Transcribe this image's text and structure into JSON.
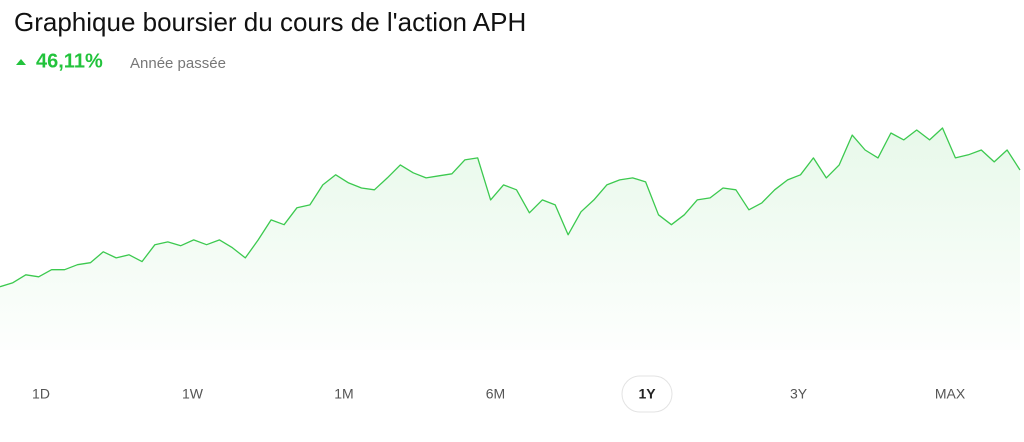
{
  "chart_data": {
    "type": "line",
    "title": "Graphique boursier du cours de l'action APH",
    "change": "46,11%",
    "period": "Année passée",
    "color": "#3cc94f",
    "ylim": [
      75,
      170
    ],
    "values": [
      100,
      101.6,
      104.7,
      103.9,
      106.7,
      106.7,
      108.7,
      109.5,
      113.8,
      111.4,
      112.6,
      109.9,
      116.6,
      117.7,
      116.2,
      118.5,
      116.6,
      118.5,
      115.4,
      111.4,
      118.5,
      126.4,
      124.5,
      131.2,
      132.3,
      140.2,
      144.2,
      141.0,
      139.0,
      138.3,
      143.0,
      148.1,
      145.0,
      143.0,
      143.8,
      144.6,
      150.1,
      150.9,
      134.3,
      140.2,
      138.3,
      129.2,
      134.3,
      132.3,
      120.5,
      129.6,
      134.3,
      140.2,
      142.2,
      143.0,
      141.4,
      128.4,
      124.5,
      128.4,
      134.3,
      135.1,
      139.0,
      138.3,
      130.4,
      133.1,
      138.3,
      142.2,
      144.2,
      150.9,
      143.0,
      148.1,
      159.9,
      154.0,
      150.9,
      160.7,
      158.0,
      161.9,
      158.0,
      162.7,
      150.9,
      152.1,
      154.0,
      149.3,
      154.0,
      146.1
    ],
    "ranges": [
      "1D",
      "1W",
      "1M",
      "6M",
      "1Y",
      "3Y",
      "MAX"
    ],
    "selected_range": "1Y"
  }
}
